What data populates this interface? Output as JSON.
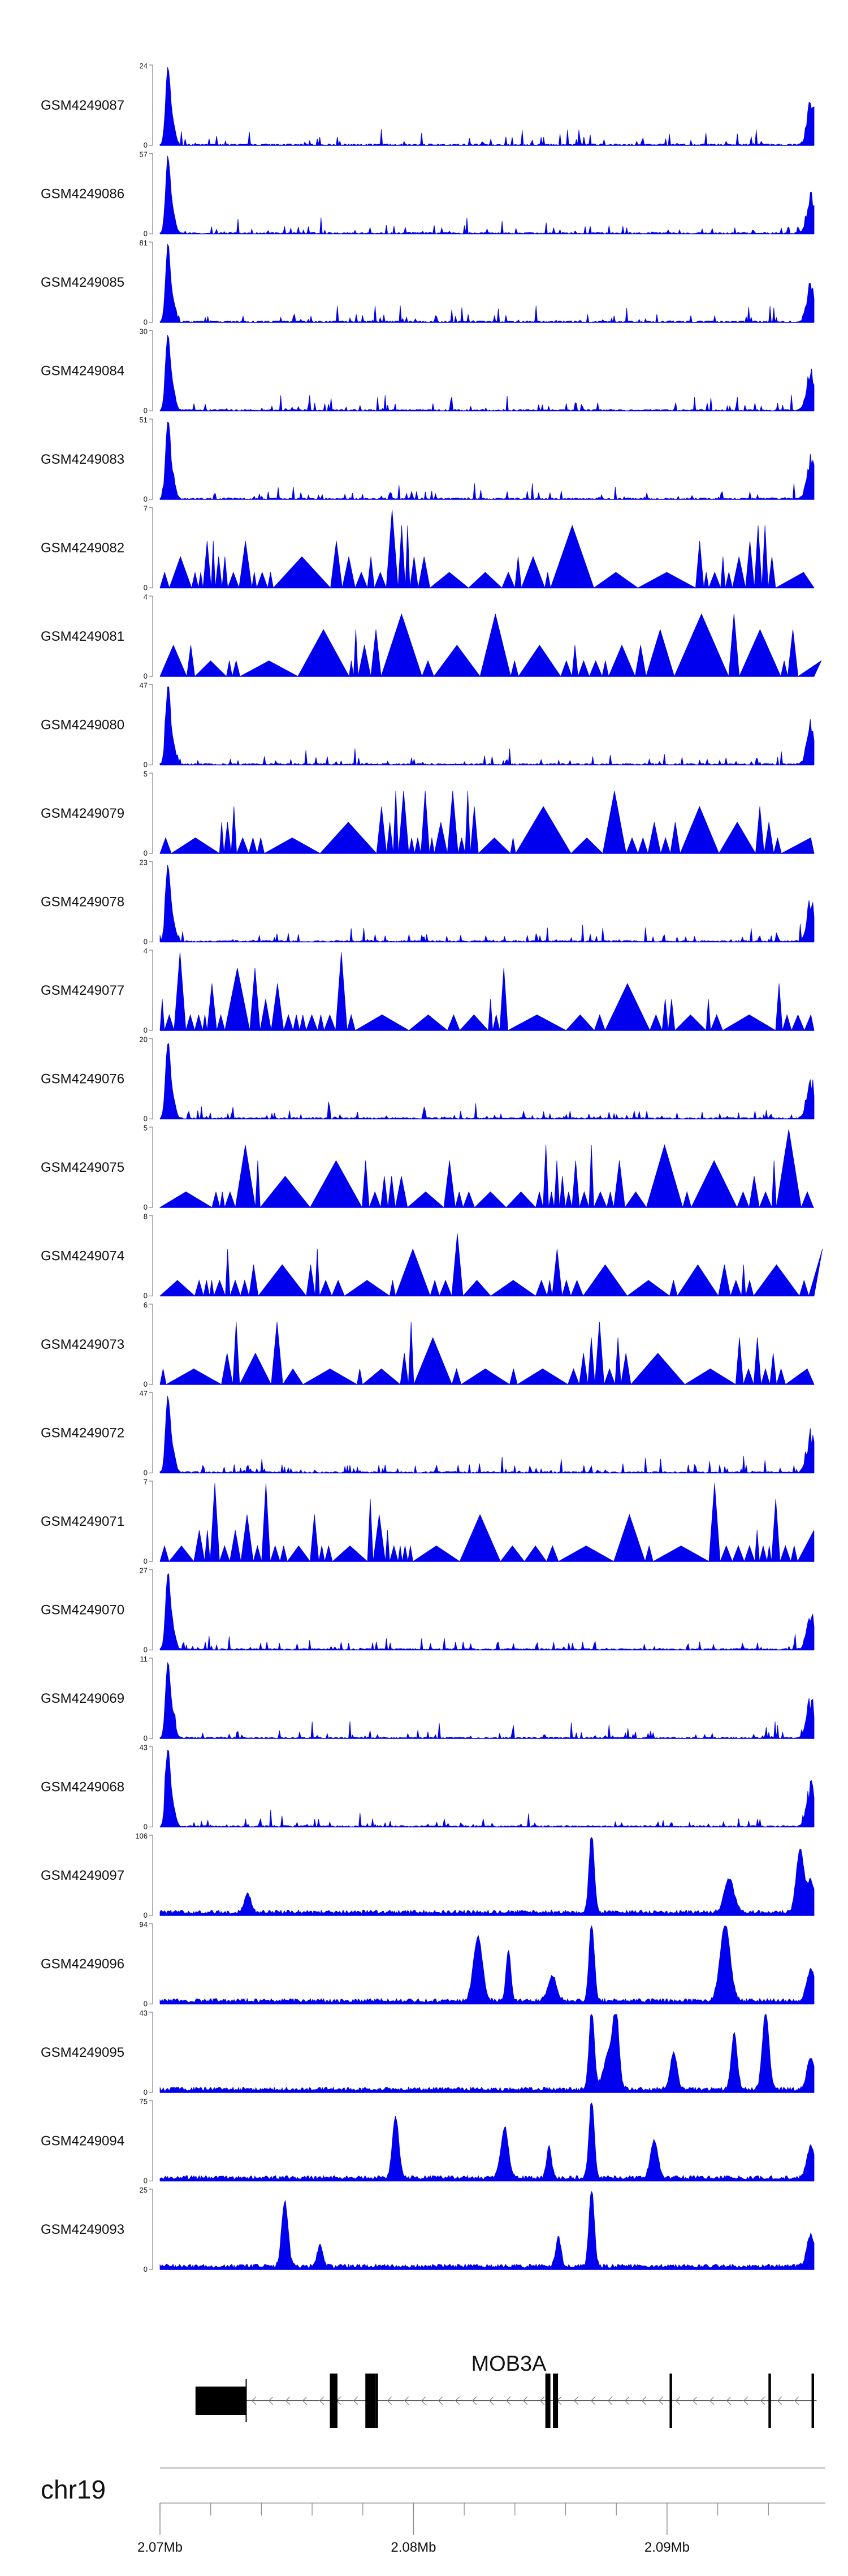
{
  "colors": {
    "signal": "#0000ee",
    "gene": "#000000",
    "axis": "#999999",
    "text": "#111111"
  },
  "chart_data": {
    "type": "area",
    "tracks": [
      {
        "name": "GSM4249087",
        "ymax": 24,
        "ymin": 0,
        "profile": "sharp",
        "seed": 87
      },
      {
        "name": "GSM4249086",
        "ymax": 57,
        "ymin": 0,
        "profile": "sharp",
        "seed": 86
      },
      {
        "name": "GSM4249085",
        "ymax": 81,
        "ymin": 0,
        "profile": "sharp",
        "seed": 85
      },
      {
        "name": "GSM4249084",
        "ymax": 30,
        "ymin": 0,
        "profile": "sharp",
        "seed": 84
      },
      {
        "name": "GSM4249083",
        "ymax": 51,
        "ymin": 0,
        "profile": "sharp",
        "seed": 83
      },
      {
        "name": "GSM4249082",
        "ymax": 7,
        "ymin": 0,
        "profile": "sparse",
        "seed": 82
      },
      {
        "name": "GSM4249081",
        "ymax": 4,
        "ymin": 0,
        "profile": "sparse",
        "seed": 81
      },
      {
        "name": "GSM4249080",
        "ymax": 47,
        "ymin": 0,
        "profile": "sharp",
        "seed": 80
      },
      {
        "name": "GSM4249079",
        "ymax": 5,
        "ymin": 0,
        "profile": "sparse",
        "seed": 79
      },
      {
        "name": "GSM4249078",
        "ymax": 23,
        "ymin": 0,
        "profile": "sharp",
        "seed": 78
      },
      {
        "name": "GSM4249077",
        "ymax": 4,
        "ymin": 0,
        "profile": "sparse",
        "seed": 77
      },
      {
        "name": "GSM4249076",
        "ymax": 20,
        "ymin": 0,
        "profile": "sharp",
        "seed": 76
      },
      {
        "name": "GSM4249075",
        "ymax": 5,
        "ymin": 0,
        "profile": "sparse",
        "seed": 75
      },
      {
        "name": "GSM4249074",
        "ymax": 8,
        "ymin": 0,
        "profile": "sparse",
        "seed": 74
      },
      {
        "name": "GSM4249073",
        "ymax": 6,
        "ymin": 0,
        "profile": "sparse",
        "seed": 73
      },
      {
        "name": "GSM4249072",
        "ymax": 47,
        "ymin": 0,
        "profile": "sharp",
        "seed": 72
      },
      {
        "name": "GSM4249071",
        "ymax": 7,
        "ymin": 0,
        "profile": "sparse",
        "seed": 71
      },
      {
        "name": "GSM4249070",
        "ymax": 27,
        "ymin": 0,
        "profile": "sharp",
        "seed": 70
      },
      {
        "name": "GSM4249069",
        "ymax": 11,
        "ymin": 0,
        "profile": "sharp",
        "seed": 69
      },
      {
        "name": "GSM4249068",
        "ymax": 43,
        "ymin": 0,
        "profile": "sharp",
        "seed": 68
      },
      {
        "name": "GSM4249097",
        "ymax": 106,
        "ymin": 0,
        "profile": "dense",
        "seed": 97
      },
      {
        "name": "GSM4249096",
        "ymax": 94,
        "ymin": 0,
        "profile": "dense",
        "seed": 96
      },
      {
        "name": "GSM4249095",
        "ymax": 43,
        "ymin": 0,
        "profile": "dense",
        "seed": 95
      },
      {
        "name": "GSM4249094",
        "ymax": 75,
        "ymin": 0,
        "profile": "dense",
        "seed": 94
      },
      {
        "name": "GSM4249093",
        "ymax": 25,
        "ymin": 0,
        "profile": "dense",
        "seed": 93
      }
    ],
    "gene": {
      "name": "MOB3A",
      "strand": "-",
      "start_mb": 2.0714,
      "end_mb": 2.0959,
      "exons": [
        {
          "start": 2.0714,
          "end": 2.0734
        },
        {
          "start": 2.0767,
          "end": 2.077
        },
        {
          "start": 2.0781,
          "end": 2.0785
        },
        {
          "start": 2.0785,
          "end": 2.0786
        },
        {
          "start": 2.0852,
          "end": 2.0854
        },
        {
          "start": 2.0855,
          "end": 2.0857
        },
        {
          "start": 2.0901,
          "end": 2.0902
        },
        {
          "start": 2.094,
          "end": 2.0941
        },
        {
          "start": 2.0957,
          "end": 2.0958
        }
      ]
    },
    "axis": {
      "chromosome": "chr19",
      "xmin_mb": 2.07,
      "xmax_mb": 2.0958,
      "major_ticks": [
        2.07,
        2.08,
        2.09
      ],
      "tick_labels": [
        "2.07Mb",
        "2.08Mb",
        "2.09Mb"
      ],
      "minor_step_mb": 0.002
    }
  }
}
